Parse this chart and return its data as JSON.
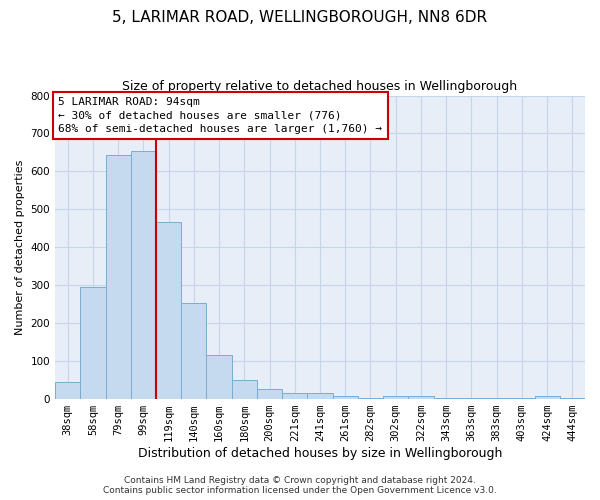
{
  "title": "5, LARIMAR ROAD, WELLINGBOROUGH, NN8 6DR",
  "subtitle": "Size of property relative to detached houses in Wellingborough",
  "xlabel": "Distribution of detached houses by size in Wellingborough",
  "ylabel": "Number of detached properties",
  "bar_color": "#c5d9ef",
  "bar_edge_color": "#7aadd4",
  "grid_color": "#c8d4e8",
  "background_color": "#e8eef8",
  "categories": [
    "38sqm",
    "58sqm",
    "79sqm",
    "99sqm",
    "119sqm",
    "140sqm",
    "160sqm",
    "180sqm",
    "200sqm",
    "221sqm",
    "241sqm",
    "261sqm",
    "282sqm",
    "302sqm",
    "322sqm",
    "343sqm",
    "363sqm",
    "383sqm",
    "403sqm",
    "424sqm",
    "444sqm"
  ],
  "values": [
    45,
    295,
    643,
    655,
    467,
    252,
    115,
    50,
    27,
    15,
    15,
    8,
    3,
    8,
    8,
    3,
    3,
    3,
    3,
    8,
    3
  ],
  "ylim": [
    0,
    800
  ],
  "yticks": [
    0,
    100,
    200,
    300,
    400,
    500,
    600,
    700,
    800
  ],
  "vline_x": 3.5,
  "vline_color": "#cc0000",
  "annotation_line1": "5 LARIMAR ROAD: 94sqm",
  "annotation_line2": "← 30% of detached houses are smaller (776)",
  "annotation_line3": "68% of semi-detached houses are larger (1,760) →",
  "annotation_box_color": "#ffffff",
  "annotation_box_edge_color": "#cc0000",
  "footer": "Contains HM Land Registry data © Crown copyright and database right 2024.\nContains public sector information licensed under the Open Government Licence v3.0.",
  "title_fontsize": 11,
  "subtitle_fontsize": 9,
  "xlabel_fontsize": 9,
  "ylabel_fontsize": 8,
  "tick_fontsize": 7.5,
  "annotation_fontsize": 8,
  "footer_fontsize": 6.5
}
